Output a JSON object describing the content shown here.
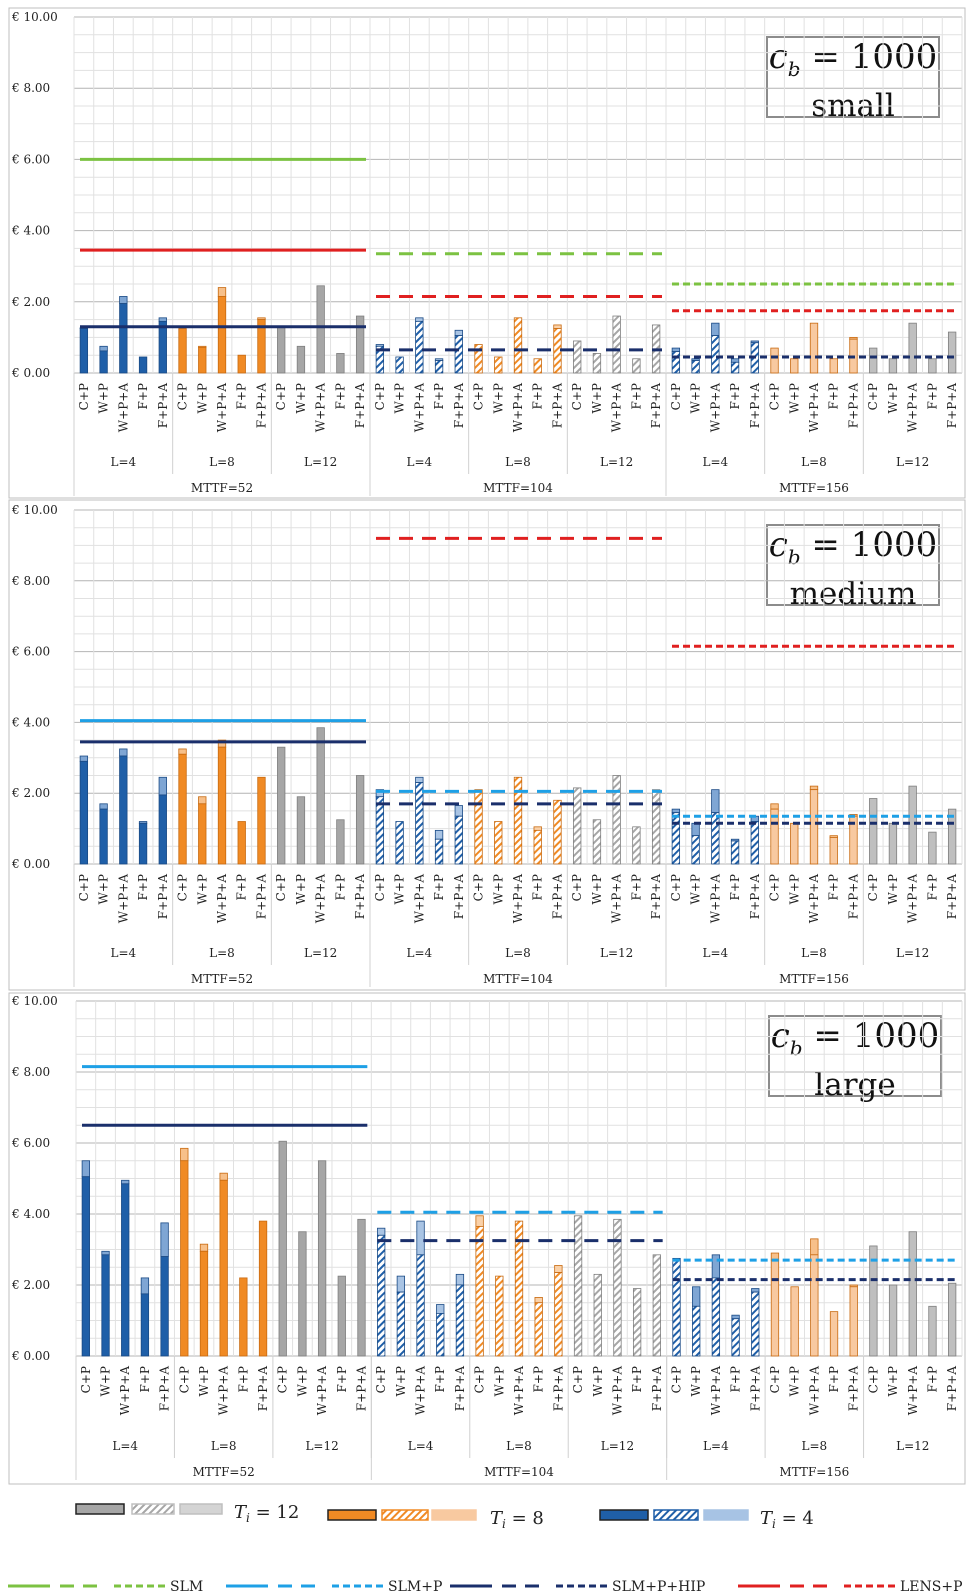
{
  "configs": [
    "C+P",
    "W+P",
    "W+P+A",
    "F+P",
    "F+P+A"
  ],
  "L_labels": [
    "L=4",
    "L=8",
    "L=12"
  ],
  "mttf_labels": [
    "MTTF=52",
    "MTTF=104",
    "MTTF=156"
  ],
  "y_ticks": [
    "€ 0.00",
    "€ 2.00",
    "€ 4.00",
    "€ 6.00",
    "€ 8.00",
    "€ 10.00"
  ],
  "panel_titles": [
    {
      "cb": "c",
      "sub": "b",
      "eq": " = 1000",
      "size": "small"
    },
    {
      "cb": "c",
      "sub": "b",
      "eq": " = 1000",
      "size": "medium"
    },
    {
      "cb": "c",
      "sub": "b",
      "eq": " = 1000",
      "size": "large"
    }
  ],
  "legend": {
    "ti12": "= 12",
    "ti8": "= 8",
    "ti4": "= 4",
    "ti_symbol": "T",
    "ti_sub": "i",
    "slm": "SLM",
    "slmp": "SLM+P",
    "slmphip": "SLM+P+HIP",
    "lensp": "LENS+P"
  },
  "colors": {
    "ti4": "#1f5fa8",
    "ti8": "#f08a24",
    "ti12": "#a6a6a6",
    "slm": "#7cc242",
    "slmp": "#1ea0e6",
    "slmphip": "#1a2f6b",
    "lensp": "#e02020"
  },
  "chart_data": [
    {
      "type": "bar",
      "title": "c_b = 1000 small",
      "ylim": [
        0,
        10
      ],
      "ylabel": "",
      "x_groups": "MTTF (52,104,156) > L (4,8,12) > configuration",
      "series": [
        {
          "mttf": 52,
          "values": [
            [
              1.25,
              1.27
            ],
            [
              0.62,
              0.75
            ],
            [
              1.95,
              2.15
            ],
            [
              0.45,
              0.45
            ],
            [
              1.45,
              1.55
            ],
            [
              1.25,
              1.25
            ],
            [
              0.72,
              0.75
            ],
            [
              2.15,
              2.4
            ],
            [
              0.5,
              0.5
            ],
            [
              1.5,
              1.55
            ],
            [
              1.28,
              1.28
            ],
            [
              0.75,
              0.75
            ],
            [
              2.45,
              2.45
            ],
            [
              0.55,
              0.55
            ],
            [
              1.6,
              1.6
            ]
          ]
        },
        {
          "mttf": 104,
          "values": [
            [
              0.75,
              0.8
            ],
            [
              0.45,
              0.45
            ],
            [
              1.45,
              1.55
            ],
            [
              0.35,
              0.4
            ],
            [
              1.05,
              1.2
            ],
            [
              0.8,
              0.8
            ],
            [
              0.45,
              0.45
            ],
            [
              1.55,
              1.55
            ],
            [
              0.4,
              0.4
            ],
            [
              1.25,
              1.35
            ],
            [
              0.9,
              0.9
            ],
            [
              0.55,
              0.55
            ],
            [
              1.6,
              1.6
            ],
            [
              0.4,
              0.4
            ],
            [
              1.35,
              1.35
            ]
          ]
        },
        {
          "mttf": 156,
          "values": [
            [
              0.6,
              0.7
            ],
            [
              0.35,
              0.4
            ],
            [
              1.05,
              1.4
            ],
            [
              0.3,
              0.4
            ],
            [
              0.85,
              0.9
            ],
            [
              0.7,
              0.7
            ],
            [
              0.4,
              0.4
            ],
            [
              1.4,
              1.4
            ],
            [
              0.4,
              0.4
            ],
            [
              0.95,
              1.0
            ],
            [
              0.7,
              0.7
            ],
            [
              0.4,
              0.4
            ],
            [
              1.4,
              1.4
            ],
            [
              0.4,
              0.4
            ],
            [
              1.15,
              1.15
            ]
          ]
        }
      ],
      "reference_lines": [
        {
          "name": "SLM",
          "mttf": 52,
          "value": 6.0
        },
        {
          "name": "LENS+P",
          "mttf": 52,
          "value": 3.45
        },
        {
          "name": "SLM+P+HIP",
          "mttf": 52,
          "value": 1.3
        },
        {
          "name": "SLM",
          "mttf": 104,
          "value": 3.35
        },
        {
          "name": "LENS+P",
          "mttf": 104,
          "value": 2.15
        },
        {
          "name": "SLM+P+HIP",
          "mttf": 104,
          "value": 0.65
        },
        {
          "name": "SLM",
          "mttf": 156,
          "value": 2.5
        },
        {
          "name": "LENS+P",
          "mttf": 156,
          "value": 1.75
        },
        {
          "name": "SLM+P+HIP",
          "mttf": 156,
          "value": 0.45
        }
      ]
    },
    {
      "type": "bar",
      "title": "c_b = 1000 medium",
      "ylim": [
        0,
        10
      ],
      "series": [
        {
          "mttf": 52,
          "values": [
            [
              2.9,
              3.05
            ],
            [
              1.55,
              1.7
            ],
            [
              3.05,
              3.25
            ],
            [
              1.15,
              1.2
            ],
            [
              1.95,
              2.45
            ],
            [
              3.1,
              3.25
            ],
            [
              1.7,
              1.9
            ],
            [
              3.3,
              3.5
            ],
            [
              1.2,
              1.2
            ],
            [
              2.45,
              2.45
            ],
            [
              3.3,
              3.3
            ],
            [
              1.9,
              1.9
            ],
            [
              3.85,
              3.85
            ],
            [
              1.25,
              1.25
            ],
            [
              2.5,
              2.5
            ]
          ]
        },
        {
          "mttf": 104,
          "values": [
            [
              1.9,
              2.1
            ],
            [
              1.2,
              1.2
            ],
            [
              2.3,
              2.45
            ],
            [
              0.7,
              0.95
            ],
            [
              1.35,
              1.65
            ],
            [
              2.1,
              2.1
            ],
            [
              1.2,
              1.2
            ],
            [
              2.45,
              2.45
            ],
            [
              0.95,
              1.05
            ],
            [
              1.8,
              1.8
            ],
            [
              2.15,
              2.15
            ],
            [
              1.25,
              1.25
            ],
            [
              2.5,
              2.5
            ],
            [
              1.05,
              1.05
            ],
            [
              2.1,
              2.1
            ]
          ]
        },
        {
          "mttf": 156,
          "values": [
            [
              1.45,
              1.55
            ],
            [
              0.8,
              1.15
            ],
            [
              1.45,
              2.1
            ],
            [
              0.65,
              0.7
            ],
            [
              1.2,
              1.35
            ],
            [
              1.55,
              1.7
            ],
            [
              1.15,
              1.15
            ],
            [
              2.1,
              2.2
            ],
            [
              0.75,
              0.8
            ],
            [
              1.35,
              1.4
            ],
            [
              1.85,
              1.85
            ],
            [
              1.15,
              1.15
            ],
            [
              2.2,
              2.2
            ],
            [
              0.9,
              0.9
            ],
            [
              1.55,
              1.55
            ]
          ]
        }
      ],
      "reference_lines": [
        {
          "name": "SLM+P",
          "mttf": 52,
          "value": 4.05
        },
        {
          "name": "SLM+P+HIP",
          "mttf": 52,
          "value": 3.45
        },
        {
          "name": "LENS+P",
          "mttf": 104,
          "value": 9.2
        },
        {
          "name": "SLM+P",
          "mttf": 104,
          "value": 2.05
        },
        {
          "name": "SLM+P+HIP",
          "mttf": 104,
          "value": 1.7
        },
        {
          "name": "LENS+P",
          "mttf": 156,
          "value": 6.15
        },
        {
          "name": "SLM+P",
          "mttf": 156,
          "value": 1.35
        },
        {
          "name": "SLM+P+HIP",
          "mttf": 156,
          "value": 1.15
        }
      ]
    },
    {
      "type": "bar",
      "title": "c_b = 1000 large",
      "ylim": [
        0,
        10
      ],
      "series": [
        {
          "mttf": 52,
          "values": [
            [
              5.05,
              5.5
            ],
            [
              2.85,
              2.95
            ],
            [
              4.85,
              4.95
            ],
            [
              1.75,
              2.2
            ],
            [
              2.8,
              3.75
            ],
            [
              5.5,
              5.85
            ],
            [
              2.95,
              3.15
            ],
            [
              4.95,
              5.15
            ],
            [
              2.2,
              2.2
            ],
            [
              3.8,
              3.8
            ],
            [
              6.05,
              6.05
            ],
            [
              3.5,
              3.5
            ],
            [
              5.5,
              5.5
            ],
            [
              2.25,
              2.25
            ],
            [
              3.85,
              3.85
            ]
          ]
        },
        {
          "mttf": 104,
          "values": [
            [
              3.4,
              3.6
            ],
            [
              1.8,
              2.25
            ],
            [
              2.85,
              3.8
            ],
            [
              1.2,
              1.45
            ],
            [
              2.0,
              2.3
            ],
            [
              3.65,
              3.95
            ],
            [
              2.25,
              2.25
            ],
            [
              3.8,
              3.8
            ],
            [
              1.5,
              1.65
            ],
            [
              2.35,
              2.55
            ],
            [
              3.95,
              3.95
            ],
            [
              2.3,
              2.3
            ],
            [
              3.85,
              3.85
            ],
            [
              1.9,
              1.9
            ],
            [
              2.85,
              2.85
            ]
          ]
        },
        {
          "mttf": 156,
          "values": [
            [
              2.75,
              2.75
            ],
            [
              1.4,
              1.95
            ],
            [
              2.2,
              2.85
            ],
            [
              1.05,
              1.15
            ],
            [
              1.8,
              1.9
            ],
            [
              2.7,
              2.9
            ],
            [
              1.95,
              1.95
            ],
            [
              2.85,
              3.3
            ],
            [
              1.25,
              1.25
            ],
            [
              1.95,
              2.0
            ],
            [
              3.1,
              3.1
            ],
            [
              2.0,
              2.0
            ],
            [
              3.5,
              3.5
            ],
            [
              1.4,
              1.4
            ],
            [
              2.05,
              2.05
            ]
          ]
        }
      ],
      "reference_lines": [
        {
          "name": "SLM+P",
          "mttf": 52,
          "value": 8.15
        },
        {
          "name": "SLM+P+HIP",
          "mttf": 52,
          "value": 6.5
        },
        {
          "name": "SLM+P",
          "mttf": 104,
          "value": 4.05
        },
        {
          "name": "SLM+P+HIP",
          "mttf": 104,
          "value": 3.25
        },
        {
          "name": "SLM+P",
          "mttf": 156,
          "value": 2.7
        },
        {
          "name": "SLM+P+HIP",
          "mttf": 156,
          "value": 2.15
        }
      ]
    }
  ]
}
